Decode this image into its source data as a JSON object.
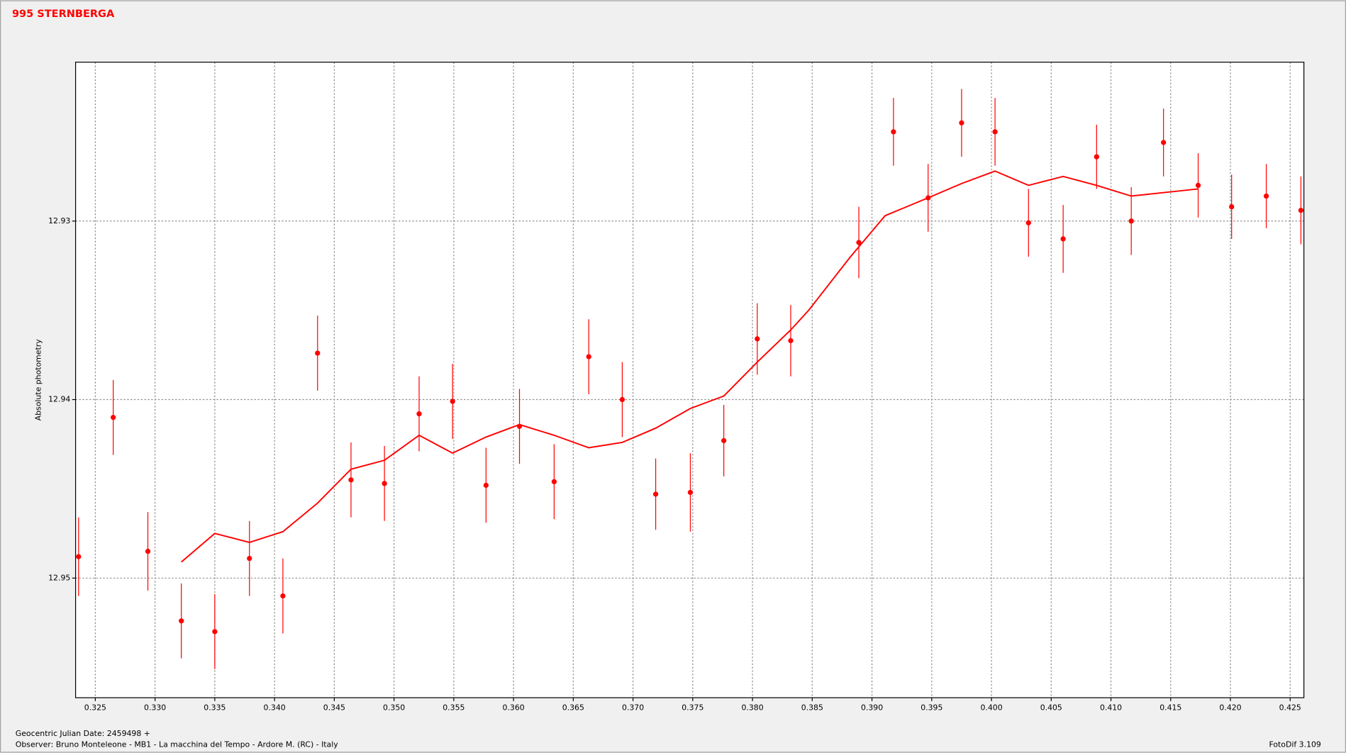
{
  "chart_data": {
    "type": "scatter",
    "title": "995 STERNBERGA",
    "ylabel": "Absolute photometry",
    "xlabel": "Geocentric Julian Date: 2459498 +",
    "annotations": [
      "Observer: Bruno Monteleone - MB1 - La macchina del Tempo - Ardore M. (RC) - Italy",
      "FotoDif 3.109"
    ],
    "xlim": [
      0.32335,
      0.42615
    ],
    "ylim": [
      12.9567,
      12.9211
    ],
    "xticks": [
      0.325,
      {
        "value": 0.33,
        "label": "0.330"
      },
      0.335,
      {
        "value": 0.34,
        "label": "0.340"
      },
      0.345,
      {
        "value": 0.35,
        "label": "0.350"
      },
      0.355,
      {
        "value": 0.36,
        "label": "0.360"
      },
      0.365,
      {
        "value": 0.37,
        "label": "0.370"
      },
      0.375,
      {
        "value": 0.38,
        "label": "0.380"
      },
      0.385,
      {
        "value": 0.39,
        "label": "0.390"
      },
      0.395,
      {
        "value": 0.4,
        "label": "0.400"
      },
      0.405,
      {
        "value": 0.41,
        "label": "0.410"
      },
      0.415,
      {
        "value": 0.42,
        "label": "0.420"
      },
      0.425
    ],
    "yticks": [
      12.93,
      12.94,
      12.95
    ],
    "grid": true,
    "series": [
      {
        "color": "#ff0000",
        "x": [
          0.3236,
          0.3265,
          0.3294,
          0.3322,
          0.335,
          0.3379,
          0.3407,
          0.3436,
          0.3464,
          0.3492,
          0.3521,
          0.3549,
          0.3577,
          0.3605,
          0.3634,
          0.3663,
          0.3691,
          0.3719,
          0.3748,
          0.3776,
          0.3804,
          0.3832,
          0.3889,
          0.3918,
          0.3947,
          0.3975,
          0.4003,
          0.4031,
          0.406,
          0.4088,
          0.4117,
          0.4144,
          0.4173,
          0.4201,
          0.423,
          0.4259
        ],
        "values": [
          12.9488,
          12.941,
          12.9485,
          12.9524,
          12.953,
          12.9489,
          12.951,
          12.9374,
          12.9445,
          12.9447,
          12.9408,
          12.9401,
          12.9448,
          12.9415,
          12.9446,
          12.9376,
          12.94,
          12.9453,
          12.9452,
          12.9423,
          12.9366,
          12.9367,
          12.9312,
          12.925,
          12.9287,
          12.9245,
          12.925,
          12.9301,
          12.931,
          12.9264,
          12.93,
          12.9256,
          12.928,
          12.9292,
          12.9286,
          12.9294
        ],
        "errors": [
          0.0022,
          0.0021,
          0.0022,
          0.0021,
          0.0021,
          0.0021,
          0.0021,
          0.0021,
          0.0021,
          0.0021,
          0.0021,
          0.0021,
          0.0021,
          0.0021,
          0.0021,
          0.0021,
          0.0021,
          0.002,
          0.0022,
          0.002,
          0.002,
          0.002,
          0.002,
          0.0019,
          0.0019,
          0.0019,
          0.0019,
          0.0019,
          0.0019,
          0.0018,
          0.0019,
          0.0019,
          0.0018,
          0.0018,
          0.0018,
          0.0019
        ]
      },
      {
        "type": "line",
        "color": "#ff0000",
        "x": [
          0.3322,
          0.335,
          0.3379,
          0.3407,
          0.3436,
          0.3464,
          0.3492,
          0.3521,
          0.3549,
          0.3577,
          0.3605,
          0.3634,
          0.3663,
          0.3691,
          0.3719,
          0.3748,
          0.3776,
          0.3804,
          0.3832,
          0.3847,
          0.3861,
          0.3882,
          0.3911,
          0.3947,
          0.3975,
          0.4003,
          0.4031,
          0.406,
          0.4088,
          0.4117,
          0.4173
        ],
        "values": [
          12.9491,
          12.9475,
          12.948,
          12.9474,
          12.9458,
          12.9439,
          12.9434,
          12.942,
          12.943,
          12.9421,
          12.9414,
          12.942,
          12.9427,
          12.9424,
          12.9416,
          12.9405,
          12.9398,
          12.9379,
          12.9361,
          12.935,
          12.9338,
          12.932,
          12.9297,
          12.9287,
          12.9279,
          12.9272,
          12.928,
          12.9275,
          12.928,
          12.9286,
          12.9282
        ]
      }
    ]
  }
}
